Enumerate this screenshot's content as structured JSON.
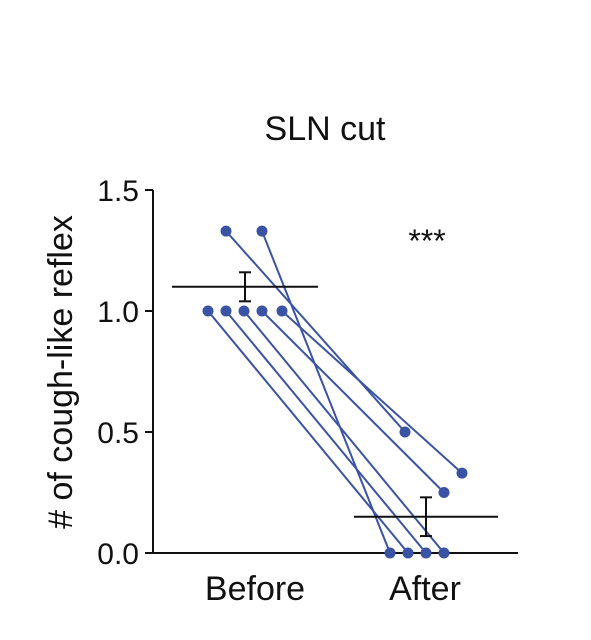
{
  "chart_data": {
    "type": "scatter",
    "title": "SLN cut",
    "ylabel": "# of cough-like reflex",
    "xlabel": "",
    "categories": [
      "Before",
      "After"
    ],
    "ylim": [
      0,
      1.5
    ],
    "yticks": [
      "0.0",
      "0.5",
      "1.0",
      "1.5"
    ],
    "significance": "***",
    "pairs": [
      {
        "before": 1.33,
        "after": 0.5
      },
      {
        "before": 1.33,
        "after": 0.0
      },
      {
        "before": 1.0,
        "after": 0.0
      },
      {
        "before": 1.0,
        "after": 0.0
      },
      {
        "before": 1.0,
        "after": 0.0
      },
      {
        "before": 1.0,
        "after": 0.25
      },
      {
        "before": 1.0,
        "after": 0.33
      }
    ],
    "before_points_x_order": [
      1.0,
      1.0,
      1.0,
      1.0,
      1.0,
      1.33,
      1.33
    ],
    "mean": {
      "before": 1.1,
      "after": 0.15
    },
    "sem": {
      "before": 0.06,
      "after": 0.08
    },
    "colors": {
      "points": "#3a53a4",
      "axis": "#111111"
    }
  }
}
